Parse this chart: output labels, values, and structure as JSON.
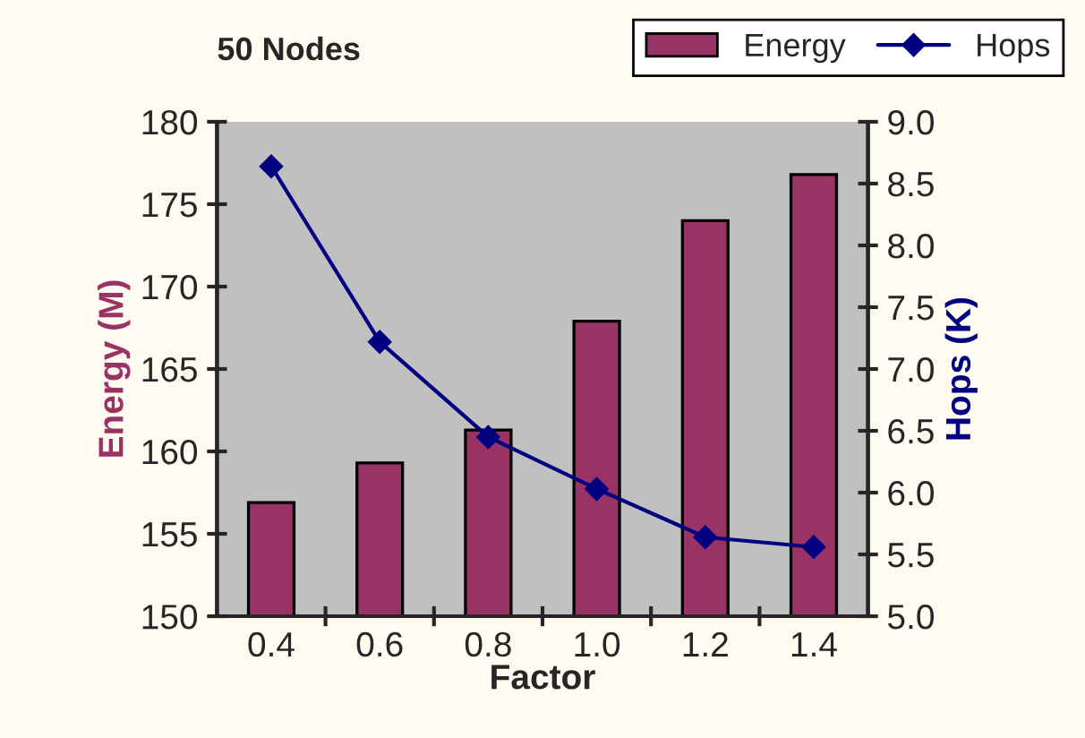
{
  "chart_data": {
    "type": "bar",
    "title": "50 Nodes",
    "xlabel": "Factor",
    "ylabel": "Energy (M)",
    "y2label": "Hops (K)",
    "categories": [
      "0.4",
      "0.6",
      "0.8",
      "1.0",
      "1.2",
      "1.4"
    ],
    "series": [
      {
        "name": "Energy",
        "color": "#993366",
        "values": [
          156.9,
          159.3,
          161.3,
          167.9,
          174.0,
          176.8
        ]
      },
      {
        "name": "Hops",
        "type": "line",
        "axis": "y2",
        "color": "#000080",
        "marker": "diamond",
        "values": [
          8.64,
          7.22,
          6.45,
          6.03,
          5.64,
          5.56
        ]
      }
    ],
    "ylim": [
      150,
      180
    ],
    "yticks": [
      150,
      155,
      160,
      165,
      170,
      175,
      180
    ],
    "y2lim": [
      5.0,
      9.0
    ],
    "y2ticks": [
      {
        "value": 5.0,
        "label": "5.0"
      },
      {
        "value": 5.5,
        "label": "5.5"
      },
      {
        "value": 6.0,
        "label": "6.0"
      },
      {
        "value": 6.5,
        "label": "6.5"
      },
      {
        "value": 7.0,
        "label": "7.0"
      },
      {
        "value": 7.5,
        "label": "7.5"
      },
      {
        "value": 8.0,
        "label": "8.0"
      },
      {
        "value": 8.5,
        "label": "8.5"
      },
      {
        "value": 9.0,
        "label": "9.0"
      }
    ],
    "grid": false,
    "legend": "top right"
  }
}
